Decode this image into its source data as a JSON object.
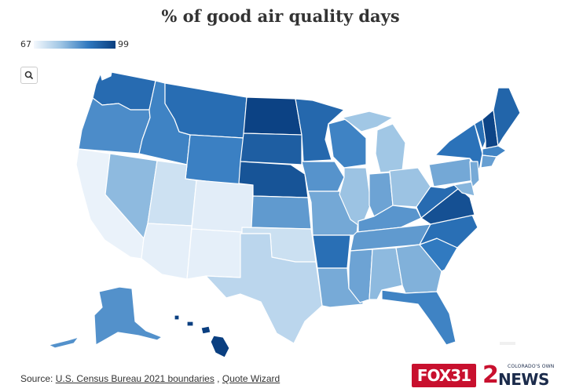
{
  "title": "% of good air quality days",
  "legend": {
    "min": "67",
    "max": "99"
  },
  "colors": {
    "low": "#f4f8fd",
    "mid": "#9ec5e4",
    "high": "#2f78bf",
    "max": "#0a3f80"
  },
  "zoom_button": {
    "icon": "search-icon"
  },
  "source": {
    "prefix": "Source: ",
    "links": [
      "U.S. Census Bureau 2021 boundaries",
      "Quote Wizard"
    ],
    "separator": " , "
  },
  "logos": {
    "fox": "FOX31",
    "two": "2",
    "news": "NEWS",
    "tagline": "COLORADO'S OWN"
  },
  "states": [
    {
      "code": "WA",
      "shade": 0.74
    },
    {
      "code": "OR",
      "shade": 0.58
    },
    {
      "code": "CA",
      "shade": 0.04
    },
    {
      "code": "NV",
      "shade": 0.38
    },
    {
      "code": "ID",
      "shade": 0.62
    },
    {
      "code": "MT",
      "shade": 0.73
    },
    {
      "code": "WY",
      "shade": 0.63
    },
    {
      "code": "UT",
      "shade": 0.15
    },
    {
      "code": "CO",
      "shade": 0.07
    },
    {
      "code": "AZ",
      "shade": 0.06
    },
    {
      "code": "NM",
      "shade": 0.06
    },
    {
      "code": "ND",
      "shade": 0.98
    },
    {
      "code": "SD",
      "shade": 0.82
    },
    {
      "code": "NE",
      "shade": 0.88
    },
    {
      "code": "KS",
      "shade": 0.52
    },
    {
      "code": "OK",
      "shade": 0.16
    },
    {
      "code": "TX",
      "shade": 0.22
    },
    {
      "code": "MN",
      "shade": 0.76
    },
    {
      "code": "IA",
      "shade": 0.55
    },
    {
      "code": "MO",
      "shade": 0.46
    },
    {
      "code": "AR",
      "shade": 0.72
    },
    {
      "code": "LA",
      "shade": 0.45
    },
    {
      "code": "WI",
      "shade": 0.62
    },
    {
      "code": "IL",
      "shade": 0.34
    },
    {
      "code": "MI",
      "shade": 0.32
    },
    {
      "code": "IN",
      "shade": 0.48
    },
    {
      "code": "OH",
      "shade": 0.34
    },
    {
      "code": "KY",
      "shade": 0.54
    },
    {
      "code": "TN",
      "shade": 0.52
    },
    {
      "code": "MS",
      "shade": 0.48
    },
    {
      "code": "AL",
      "shade": 0.38
    },
    {
      "code": "GA",
      "shade": 0.42
    },
    {
      "code": "FL",
      "shade": 0.62
    },
    {
      "code": "SC",
      "shade": 0.66
    },
    {
      "code": "NC",
      "shade": 0.72
    },
    {
      "code": "VA",
      "shade": 0.9
    },
    {
      "code": "WV",
      "shade": 0.74
    },
    {
      "code": "PA",
      "shade": 0.46
    },
    {
      "code": "NY",
      "shade": 0.7
    },
    {
      "code": "VT",
      "shade": 0.72
    },
    {
      "code": "NH",
      "shade": 0.97
    },
    {
      "code": "ME",
      "shade": 0.78
    },
    {
      "code": "MA",
      "shade": 0.62
    },
    {
      "code": "CT",
      "shade": 0.5
    },
    {
      "code": "NJ",
      "shade": 0.45
    },
    {
      "code": "MD",
      "shade": 0.4
    },
    {
      "code": "AK",
      "shade": 0.56
    },
    {
      "code": "HI",
      "shade": 1.0
    }
  ]
}
